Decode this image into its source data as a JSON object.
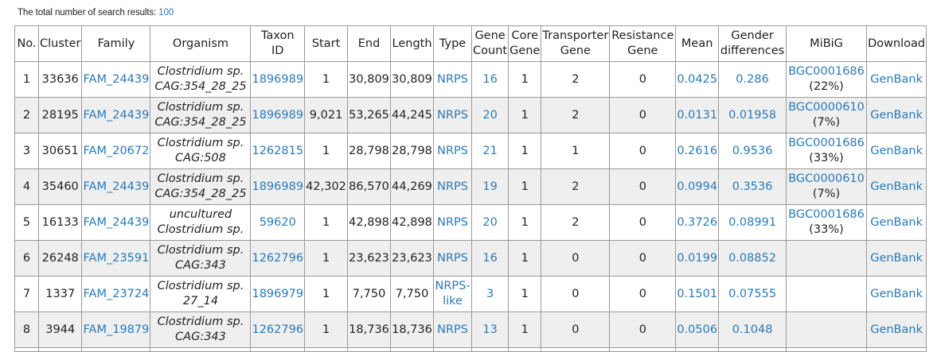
{
  "summary": {
    "label": "The total number of search results: ",
    "count": "100"
  },
  "headers": {
    "no": "No.",
    "cluster": "Cluster",
    "family": "Family",
    "organism": "Organism",
    "taxon_1": "Taxon",
    "taxon_2": "ID",
    "start": "Start",
    "end": "End",
    "length": "Length",
    "type": "Type",
    "gene_1": "Gene",
    "gene_2": "Count",
    "core_1": "Core",
    "core_2": "Gene",
    "transporter_1": "Transporter",
    "transporter_2": "Gene",
    "resistance_1": "Resistance",
    "resistance_2": "Gene",
    "mean": "Mean",
    "gender_1": "Gender",
    "gender_2": "differences",
    "mibig": "MiBiG",
    "download": "Download"
  },
  "rows": [
    {
      "no": "1",
      "cluster": "33636",
      "family": "FAM_24439",
      "organism_1": "Clostridium sp.",
      "organism_2": "CAG:354_28_25",
      "taxon": "1896989",
      "start": "1",
      "end": "30,809",
      "length": "30,809",
      "type_1": "NRPS",
      "type_2": "",
      "gene_count": "16",
      "core": "1",
      "transporter": "2",
      "resistance": "0",
      "mean": "0.0425",
      "gender": "0.286",
      "mibig_id": "BGC0001686",
      "mibig_pct": "(22%)",
      "download": "GenBank"
    },
    {
      "no": "2",
      "cluster": "28195",
      "family": "FAM_24439",
      "organism_1": "Clostridium sp.",
      "organism_2": "CAG:354_28_25",
      "taxon": "1896989",
      "start": "9,021",
      "end": "53,265",
      "length": "44,245",
      "type_1": "NRPS",
      "type_2": "",
      "gene_count": "20",
      "core": "1",
      "transporter": "2",
      "resistance": "0",
      "mean": "0.0131",
      "gender": "0.01958",
      "mibig_id": "BGC0000610",
      "mibig_pct": "(7%)",
      "download": "GenBank"
    },
    {
      "no": "3",
      "cluster": "30651",
      "family": "FAM_20672",
      "organism_1": "Clostridium sp.",
      "organism_2": "CAG:508",
      "taxon": "1262815",
      "start": "1",
      "end": "28,798",
      "length": "28,798",
      "type_1": "NRPS",
      "type_2": "",
      "gene_count": "21",
      "core": "1",
      "transporter": "1",
      "resistance": "0",
      "mean": "0.2616",
      "gender": "0.9536",
      "mibig_id": "BGC0001686",
      "mibig_pct": "(33%)",
      "download": "GenBank"
    },
    {
      "no": "4",
      "cluster": "35460",
      "family": "FAM_24439",
      "organism_1": "Clostridium sp.",
      "organism_2": "CAG:354_28_25",
      "taxon": "1896989",
      "start": "42,302",
      "end": "86,570",
      "length": "44,269",
      "type_1": "NRPS",
      "type_2": "",
      "gene_count": "19",
      "core": "1",
      "transporter": "2",
      "resistance": "0",
      "mean": "0.0994",
      "gender": "0.3536",
      "mibig_id": "BGC0000610",
      "mibig_pct": "(7%)",
      "download": "GenBank"
    },
    {
      "no": "5",
      "cluster": "16133",
      "family": "FAM_24439",
      "organism_1": "uncultured",
      "organism_2": "Clostridium sp.",
      "taxon": "59620",
      "start": "1",
      "end": "42,898",
      "length": "42,898",
      "type_1": "NRPS",
      "type_2": "",
      "gene_count": "20",
      "core": "1",
      "transporter": "2",
      "resistance": "0",
      "mean": "0.3726",
      "gender": "0.08991",
      "mibig_id": "BGC0001686",
      "mibig_pct": "(33%)",
      "download": "GenBank"
    },
    {
      "no": "6",
      "cluster": "26248",
      "family": "FAM_23591",
      "organism_1": "Clostridium sp.",
      "organism_2": "CAG:343",
      "taxon": "1262796",
      "start": "1",
      "end": "23,623",
      "length": "23,623",
      "type_1": "NRPS",
      "type_2": "",
      "gene_count": "16",
      "core": "1",
      "transporter": "0",
      "resistance": "0",
      "mean": "0.0199",
      "gender": "0.08852",
      "mibig_id": "",
      "mibig_pct": "",
      "download": "GenBank"
    },
    {
      "no": "7",
      "cluster": "1337",
      "family": "FAM_23724",
      "organism_1": "Clostridium sp.",
      "organism_2": "27_14",
      "taxon": "1896979",
      "start": "1",
      "end": "7,750",
      "length": "7,750",
      "type_1": "NRPS-",
      "type_2": "like",
      "gene_count": "3",
      "core": "1",
      "transporter": "0",
      "resistance": "0",
      "mean": "0.1501",
      "gender": "0.07555",
      "mibig_id": "",
      "mibig_pct": "",
      "download": "GenBank"
    },
    {
      "no": "8",
      "cluster": "3944",
      "family": "FAM_19879",
      "organism_1": "Clostridium sp.",
      "organism_2": "CAG:343",
      "taxon": "1262796",
      "start": "1",
      "end": "18,736",
      "length": "18,736",
      "type_1": "NRPS",
      "type_2": "",
      "gene_count": "13",
      "core": "1",
      "transporter": "0",
      "resistance": "0",
      "mean": "0.0506",
      "gender": "0.1048",
      "mibig_id": "",
      "mibig_pct": "",
      "download": "GenBank"
    }
  ]
}
